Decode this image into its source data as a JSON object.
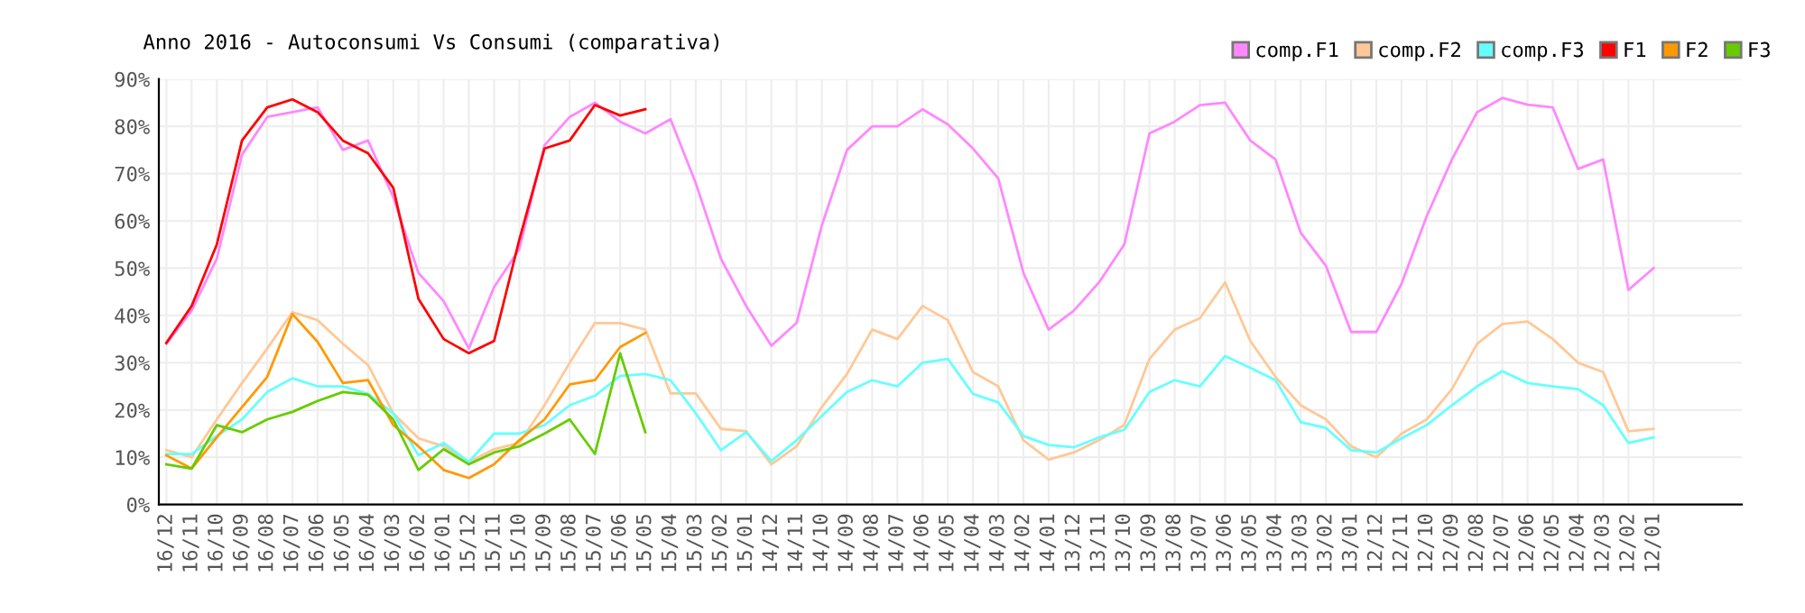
{
  "chart_data": {
    "type": "line",
    "title": "Anno 2016 - Autoconsumi Vs Consumi (comparativa)",
    "categories": [
      "16/12",
      "16/11",
      "16/10",
      "16/09",
      "16/08",
      "16/07",
      "16/06",
      "16/05",
      "16/04",
      "16/03",
      "16/02",
      "16/01",
      "15/12",
      "15/11",
      "15/10",
      "15/09",
      "15/08",
      "15/07",
      "15/06",
      "15/05",
      "15/04",
      "15/03",
      "15/02",
      "15/01",
      "14/12",
      "14/11",
      "14/10",
      "14/09",
      "14/08",
      "14/07",
      "14/06",
      "14/05",
      "14/04",
      "14/03",
      "14/02",
      "14/01",
      "13/12",
      "13/11",
      "13/10",
      "13/09",
      "13/08",
      "13/07",
      "13/06",
      "13/05",
      "13/04",
      "13/03",
      "13/02",
      "13/01",
      "12/12",
      "12/11",
      "12/10",
      "12/09",
      "12/08",
      "12/07",
      "12/06",
      "12/05",
      "12/04",
      "12/03",
      "12/02",
      "12/01"
    ],
    "series": [
      {
        "name": "comp.F1",
        "color": "#ff88ff",
        "values": [
          34,
          41,
          52,
          74,
          82,
          83,
          84,
          75,
          77,
          65,
          49,
          43,
          33,
          46,
          54,
          76,
          82,
          85,
          81,
          78.5,
          81.5,
          68,
          52,
          42,
          33.6,
          38.4,
          59,
          75,
          80,
          80,
          83.6,
          80.4,
          75.3,
          69,
          49,
          37,
          41,
          47,
          55,
          78.5,
          81,
          84.5,
          85,
          77,
          73,
          57.5,
          50.5,
          36.5,
          36.5,
          46.7,
          61,
          73,
          83,
          86,
          84.6,
          84,
          71,
          73,
          45.4,
          50
        ]
      },
      {
        "name": "comp.F2",
        "color": "#ffc896",
        "values": [
          11.5,
          10,
          18,
          25.7,
          33,
          40.7,
          39,
          34,
          29.5,
          19.3,
          14,
          12.3,
          9,
          11.7,
          13,
          21,
          30,
          38.4,
          38.4,
          37,
          23.5,
          23.5,
          16,
          15.5,
          8.5,
          12.3,
          20.6,
          27.6,
          37,
          35,
          42,
          39,
          28,
          25,
          13.6,
          9.5,
          11,
          13.6,
          16.8,
          30.8,
          37,
          39.4,
          47,
          34.6,
          27,
          21,
          18,
          12.3,
          10,
          15,
          18,
          24.4,
          34,
          38.2,
          38.7,
          35,
          30,
          28,
          15.5,
          16
        ]
      },
      {
        "name": "comp.F3",
        "color": "#66ffff",
        "values": [
          10.7,
          10.7,
          14.5,
          18,
          23.8,
          26.7,
          25,
          25,
          23.4,
          19.3,
          10.4,
          13,
          9,
          15,
          15,
          16.8,
          21,
          23,
          27.2,
          27.6,
          26.3,
          19.3,
          11.5,
          15.3,
          9.2,
          13.6,
          18.7,
          23.8,
          26.3,
          25,
          30,
          30.8,
          23.4,
          21.6,
          14.5,
          12.6,
          12.1,
          14.2,
          15.8,
          23.8,
          26.3,
          25,
          31.4,
          28.9,
          26.3,
          17.4,
          16.2,
          11.5,
          11,
          14,
          16.8,
          21,
          25,
          28.2,
          25.7,
          25,
          24.4,
          21,
          13,
          14.2
        ]
      },
      {
        "name": "F1",
        "color": "#ff0000",
        "values": [
          34.2,
          42,
          55,
          77,
          84,
          85.7,
          83,
          77,
          74.3,
          67,
          43.5,
          35,
          32,
          34.6,
          56,
          75.3,
          77,
          84.5,
          82.3,
          83.6,
          null,
          null,
          null,
          null,
          null,
          null,
          null,
          null,
          null,
          null,
          null,
          null,
          null,
          null,
          null,
          null,
          null,
          null,
          null,
          null,
          null,
          null,
          null,
          null,
          null,
          null,
          null,
          null,
          null,
          null,
          null,
          null,
          null,
          null,
          null,
          null,
          null,
          null,
          null,
          null
        ]
      },
      {
        "name": "F2",
        "color": "#ff9900",
        "values": [
          10.4,
          7.6,
          14.2,
          20.6,
          27,
          40.3,
          34.4,
          25.7,
          26.3,
          16.8,
          12.3,
          7.3,
          5.6,
          8.5,
          13.6,
          18,
          25.4,
          26.3,
          33.3,
          36.3,
          null,
          null,
          null,
          null,
          null,
          null,
          null,
          null,
          null,
          null,
          null,
          null,
          null,
          null,
          null,
          null,
          null,
          null,
          null,
          null,
          null,
          null,
          null,
          null,
          null,
          null,
          null,
          null,
          null,
          null,
          null,
          null,
          null,
          null,
          null,
          null,
          null,
          null,
          null,
          null
        ]
      },
      {
        "name": "F3",
        "color": "#66cc00",
        "values": [
          8.5,
          7.6,
          16.8,
          15.3,
          18,
          19.6,
          21.9,
          23.8,
          23.2,
          18,
          7.3,
          11.7,
          8.5,
          11,
          12.3,
          15,
          18,
          10.7,
          32,
          15.3,
          null,
          null,
          null,
          null,
          null,
          null,
          null,
          null,
          null,
          null,
          null,
          null,
          null,
          null,
          null,
          null,
          null,
          null,
          null,
          null,
          null,
          null,
          null,
          null,
          null,
          null,
          null,
          null,
          null,
          null,
          null,
          null,
          null,
          null,
          null,
          null,
          null,
          null,
          null,
          null
        ]
      }
    ],
    "ylim": [
      0,
      90
    ],
    "yticks": [
      {
        "value": 0,
        "label": "0%"
      },
      {
        "value": 10,
        "label": "10%"
      },
      {
        "value": 20,
        "label": "20%"
      },
      {
        "value": 30,
        "label": "30%"
      },
      {
        "value": 40,
        "label": "40%"
      },
      {
        "value": 50,
        "label": "50%"
      },
      {
        "value": 60,
        "label": "60%"
      },
      {
        "value": 70,
        "label": "70%"
      },
      {
        "value": 80,
        "label": "80%"
      },
      {
        "value": 90,
        "label": "90%"
      }
    ],
    "grid": true,
    "legend": "top right",
    "marker": "none",
    "line_style": "solid"
  }
}
